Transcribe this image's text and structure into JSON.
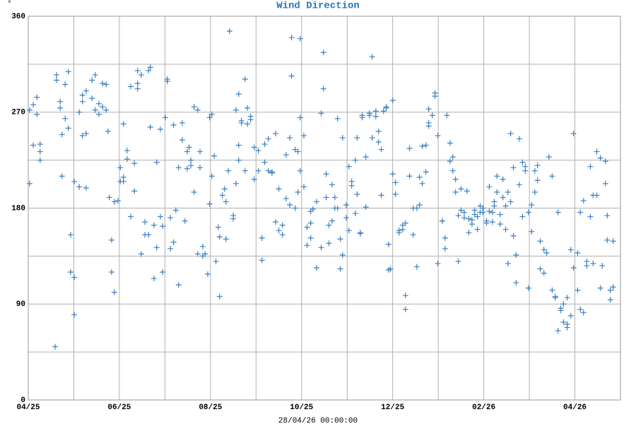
{
  "chart_data": {
    "type": "scatter",
    "title": "Wind Direction",
    "ylabel": "°",
    "xlabel": "28/04/26 00:00:00",
    "color": "#3a7fc1",
    "grid": true,
    "xlim": [
      0,
      13
    ],
    "ylim": [
      0,
      360
    ],
    "yticks": [
      0,
      90,
      180,
      270,
      360
    ],
    "yminor": [
      45,
      135,
      225,
      315
    ],
    "xticks": [
      {
        "value": 0,
        "label": "04/25"
      },
      {
        "value": 2,
        "label": "06/25"
      },
      {
        "value": 4,
        "label": "08/25"
      },
      {
        "value": 6,
        "label": "10/25"
      },
      {
        "value": 8,
        "label": "12/25"
      },
      {
        "value": 10,
        "label": "02/26"
      },
      {
        "value": 12,
        "label": "04/26"
      }
    ],
    "xminor": [
      1,
      3,
      5,
      7,
      9,
      11
    ],
    "x": [
      0.03,
      0.03,
      0.11,
      0.11,
      0.19,
      0.19,
      0.26,
      0.26,
      0.26,
      0.59,
      0.62,
      0.62,
      0.7,
      0.7,
      0.74,
      0.74,
      0.81,
      0.81,
      0.88,
      0.88,
      0.93,
      0.93,
      1.01,
      1.01,
      1.01,
      1.12,
      1.12,
      1.19,
      1.19,
      1.19,
      1.27,
      1.27,
      1.27,
      1.4,
      1.4,
      1.47,
      1.47,
      1.55,
      1.55,
      1.63,
      1.63,
      1.71,
      1.71,
      1.75,
      1.78,
      1.83,
      1.83,
      1.89,
      1.89,
      1.97,
      2.02,
      2.02,
      2.09,
      2.09,
      2.09,
      2.17,
      2.17,
      2.25,
      2.25,
      2.33,
      2.33,
      2.4,
      2.4,
      2.4,
      2.48,
      2.48,
      2.56,
      2.56,
      2.64,
      2.64,
      2.68,
      2.68,
      2.76,
      2.76,
      2.82,
      2.82,
      2.9,
      2.9,
      2.95,
      2.95,
      3.01,
      3.05,
      3.05,
      3.12,
      3.12,
      3.19,
      3.19,
      3.24,
      3.3,
      3.3,
      3.38,
      3.38,
      3.44,
      3.49,
      3.49,
      3.53,
      3.57,
      3.57,
      3.64,
      3.64,
      3.72,
      3.72,
      3.77,
      3.77,
      3.83,
      3.83,
      3.88,
      3.94,
      3.98,
      3.98,
      4.03,
      4.03,
      4.08,
      4.12,
      4.17,
      4.2,
      4.2,
      4.26,
      4.31,
      4.34,
      4.34,
      4.39,
      4.42,
      4.5,
      4.5,
      4.56,
      4.56,
      4.62,
      4.62,
      4.62,
      4.68,
      4.68,
      4.76,
      4.76,
      4.81,
      4.81,
      4.88,
      4.88,
      4.96,
      4.96,
      5.05,
      5.05,
      5.13,
      5.13,
      5.19,
      5.19,
      5.27,
      5.27,
      5.35,
      5.35,
      5.43,
      5.43,
      5.5,
      5.5,
      5.58,
      5.58,
      5.66,
      5.66,
      5.74,
      5.74,
      5.78,
      5.78,
      5.86,
      5.86,
      5.92,
      5.92,
      5.97,
      5.97,
      5.97,
      6.05,
      6.05,
      6.12,
      6.12,
      6.2,
      6.2,
      6.2,
      6.25,
      6.33,
      6.33,
      6.43,
      6.43,
      6.48,
      6.48,
      6.54,
      6.54,
      6.6,
      6.6,
      6.67,
      6.67,
      6.73,
      6.73,
      6.79,
      6.79,
      6.85,
      6.85,
      6.9,
      6.9,
      6.98,
      6.98,
      7.04,
      7.04,
      7.1,
      7.1,
      7.18,
      7.18,
      7.22,
      7.22,
      7.29,
      7.29,
      7.33,
      7.33,
      7.41,
      7.41,
      7.49,
      7.49,
      7.55,
      7.55,
      7.63,
      7.63,
      7.69,
      7.69,
      7.75,
      7.75,
      7.8,
      7.86,
      7.86,
      7.91,
      7.91,
      7.95,
      8.0,
      8.0,
      8.06,
      8.06,
      8.14,
      8.14,
      8.22,
      8.22,
      8.28,
      8.28,
      8.28,
      8.37,
      8.37,
      8.45,
      8.45,
      8.53,
      8.53,
      8.59,
      8.59,
      8.65,
      8.65,
      8.73,
      8.73,
      8.79,
      8.79,
      8.79,
      8.87,
      8.93,
      8.93,
      8.99,
      8.99,
      9.09,
      9.09,
      9.15,
      9.15,
      9.19,
      9.26,
      9.26,
      9.32,
      9.32,
      9.38,
      9.38,
      9.44,
      9.44,
      9.5,
      9.5,
      9.57,
      9.57,
      9.63,
      9.67,
      9.67,
      9.74,
      9.74,
      9.8,
      9.8,
      9.86,
      9.86,
      9.92,
      9.92,
      9.98,
      9.98,
      10.06,
      10.06,
      10.12,
      10.12,
      10.19,
      10.19,
      10.23,
      10.23,
      10.29,
      10.29,
      10.36,
      10.36,
      10.42,
      10.42,
      10.48,
      10.48,
      10.53,
      10.53,
      10.59,
      10.59,
      10.65,
      10.65,
      10.71,
      10.71,
      10.78,
      10.78,
      10.85,
      10.85,
      10.91,
      10.91,
      10.98,
      10.98,
      11.05,
      11.05,
      11.12,
      11.12,
      11.18,
      11.18,
      11.24,
      11.24,
      11.32,
      11.32,
      11.38,
      11.43,
      11.5,
      11.5,
      11.57,
      11.57,
      11.63,
      11.63,
      11.69,
      11.69,
      11.75,
      11.75,
      11.83,
      11.83,
      11.83,
      11.91,
      11.91,
      11.97,
      11.97,
      12.06,
      12.06,
      12.12,
      12.12,
      12.19,
      12.19,
      12.26,
      12.26,
      12.34,
      12.34,
      12.4,
      12.4,
      12.48,
      12.48,
      12.56,
      12.56,
      12.6,
      12.67,
      12.67,
      12.71,
      12.71,
      12.78,
      12.78,
      12.84,
      12.84
    ],
    "values": [
      272,
      203,
      239,
      277,
      268,
      284,
      225,
      240,
      233,
      50,
      305,
      300,
      274,
      280,
      210,
      249,
      296,
      264,
      308,
      255,
      155,
      120,
      205,
      80,
      115,
      200,
      270,
      280,
      248,
      286,
      290,
      250,
      199,
      300,
      283,
      305,
      272,
      278,
      268,
      275,
      297,
      272,
      296,
      252,
      190,
      120,
      150,
      101,
      186,
      187,
      218,
      205,
      259,
      205,
      209,
      234,
      226,
      294,
      172,
      196,
      222,
      292,
      297,
      309,
      305,
      137,
      155,
      167,
      309,
      155,
      256,
      312,
      164,
      114,
      143,
      223,
      172,
      254,
      120,
      163,
      265,
      299,
      301,
      142,
      171,
      148,
      258,
      178,
      218,
      108,
      260,
      244,
      168,
      233,
      217,
      237,
      220,
      225,
      195,
      275,
      272,
      137,
      218,
      233,
      144,
      135,
      137,
      118,
      184,
      265,
      210,
      268,
      229,
      130,
      162,
      97,
      153,
      192,
      198,
      186,
      151,
      215,
      346,
      170,
      173,
      272,
      203,
      225,
      287,
      239,
      262,
      260,
      301,
      215,
      274,
      259,
      266,
      263,
      237,
      207,
      234,
      215,
      152,
      131,
      223,
      240,
      215,
      245,
      213,
      214,
      167,
      250,
      198,
      159,
      155,
      164,
      230,
      189,
      183,
      246,
      340,
      304,
      235,
      180,
      195,
      233,
      339,
      265,
      215,
      248,
      200,
      162,
      145,
      152,
      166,
      177,
      179,
      124,
      186,
      269,
      143,
      326,
      292,
      190,
      212,
      164,
      147,
      202,
      168,
      190,
      180,
      264,
      180,
      123,
      151,
      136,
      246,
      183,
      171,
      219,
      159,
      205,
      201,
      175,
      225,
      246,
      193,
      157,
      156,
      265,
      267,
      181,
      228,
      269,
      267,
      322,
      246,
      271,
      266,
      252,
      242,
      235,
      192,
      271,
      274,
      275,
      146,
      122,
      123,
      281,
      212,
      193,
      204,
      157,
      159,
      160,
      164,
      85,
      98,
      166,
      210,
      236,
      180,
      155,
      125,
      180,
      209,
      183,
      203,
      238,
      214,
      239,
      257,
      260,
      273,
      267,
      288,
      285,
      128,
      248,
      168,
      168,
      152,
      142,
      267,
      224,
      241,
      228,
      215,
      195,
      207,
      130,
      173,
      198,
      178,
      171,
      176,
      196,
      170,
      157,
      165,
      169,
      174,
      178,
      160,
      172,
      176,
      182,
      180,
      176,
      168,
      166,
      177,
      200,
      167,
      176,
      186,
      182,
      210,
      195,
      174,
      165,
      190,
      207,
      160,
      182,
      195,
      128,
      250,
      186,
      218,
      154,
      136,
      110,
      245,
      202,
      172,
      223,
      215,
      219,
      176,
      105,
      158,
      183,
      195,
      215,
      206,
      220,
      149,
      123,
      119,
      141,
      138,
      228,
      210,
      103,
      96,
      97,
      65,
      176,
      84,
      86,
      73,
      90,
      68,
      71,
      96,
      79,
      141,
      124,
      250,
      103,
      138,
      85,
      176,
      187,
      82,
      126,
      130,
      219,
      172,
      192,
      128,
      233,
      192,
      105,
      227,
      126,
      203,
      224,
      173,
      150,
      103,
      94,
      149,
      106
    ]
  }
}
